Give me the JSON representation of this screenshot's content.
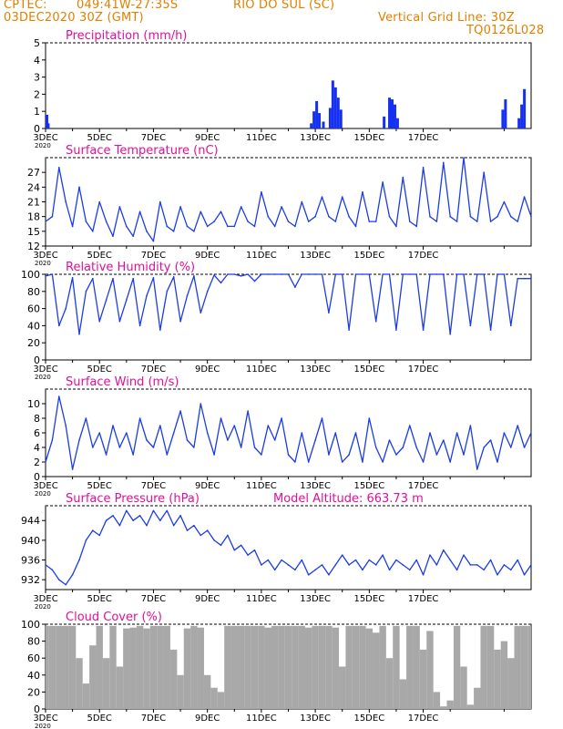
{
  "header": {
    "org": "CPTEC:",
    "coords": "049:41W-27:35S",
    "station": "RIO DO SUL (SC)",
    "datetime": "03DEC2020 30Z (GMT)",
    "grid_line": "Vertical Grid Line: 30Z",
    "code": "TQ0126L028"
  },
  "colors": {
    "header_text": "#e08000",
    "panel_title": "#e0109a",
    "series_line": "#1c3ce6",
    "precip_bar": "#1530f0",
    "cloud_bar": "#a8a8a8",
    "frame": "#000000"
  },
  "x_axis": {
    "tick_labels": [
      "3DEC",
      "5DEC",
      "7DEC",
      "9DEC",
      "11DEC",
      "13DEC",
      "15DEC",
      "17DEC"
    ],
    "sub_label": "2020"
  },
  "chart_data": [
    {
      "type": "bar",
      "title": "Precipitation (mm/h)",
      "ylim": [
        0,
        5
      ],
      "yticks": [
        0,
        1,
        2,
        3,
        4,
        5
      ],
      "x": [
        0.05,
        0.1,
        9.85,
        9.95,
        10.05,
        10.15,
        10.3,
        10.55,
        10.65,
        10.75,
        10.85,
        10.95,
        12.55,
        12.75,
        12.85,
        12.95,
        13.05,
        16.95,
        17.05,
        17.55,
        17.65,
        17.75
      ],
      "values": [
        0.8,
        0.3,
        0.3,
        1.0,
        1.6,
        0.9,
        0.4,
        1.2,
        2.8,
        2.4,
        1.8,
        1.1,
        0.7,
        1.8,
        1.7,
        1.4,
        0.6,
        1.1,
        1.7,
        0.6,
        1.4,
        2.3
      ]
    },
    {
      "type": "line",
      "title": "Surface Temperature (nC)",
      "ylim": [
        12,
        30
      ],
      "yticks": [
        12,
        15,
        18,
        21,
        24,
        27
      ],
      "x": [
        0,
        0.25,
        0.5,
        0.75,
        1.0,
        1.25,
        1.5,
        1.75,
        2.0,
        2.25,
        2.5,
        2.75,
        3.0,
        3.25,
        3.5,
        3.75,
        4.0,
        4.25,
        4.5,
        4.75,
        5.0,
        5.25,
        5.5,
        5.75,
        6.0,
        6.25,
        6.5,
        6.75,
        7.0,
        7.25,
        7.5,
        7.75,
        8.0,
        8.25,
        8.5,
        8.75,
        9.0,
        9.25,
        9.5,
        9.75,
        10.0,
        10.25,
        10.5,
        10.75,
        11.0,
        11.25,
        11.5,
        11.75,
        12.0,
        12.25,
        12.5,
        12.75,
        13.0,
        13.25,
        13.5,
        13.75,
        14.0,
        14.25,
        14.5,
        14.75,
        15.0,
        15.25,
        15.5,
        15.75,
        16.0,
        16.25,
        16.5,
        16.75,
        17.0,
        17.25,
        17.5,
        17.75,
        18.0
      ],
      "values": [
        17,
        18,
        28,
        21,
        16,
        24,
        17,
        15,
        21,
        17,
        14,
        20,
        16,
        14,
        19,
        15,
        13,
        21,
        16,
        15,
        20,
        16,
        15,
        19,
        16,
        17,
        19,
        16,
        16,
        20,
        17,
        16,
        23,
        18,
        16,
        20,
        17,
        16,
        21,
        17,
        18,
        22,
        18,
        17,
        22,
        18,
        16,
        23,
        17,
        17,
        25,
        18,
        16,
        26,
        17,
        16,
        28,
        18,
        17,
        29,
        18,
        17,
        30,
        18,
        17,
        27,
        17,
        18,
        21,
        18,
        17,
        22,
        18
      ]
    },
    {
      "type": "line",
      "title": "Relative Humidity (%)",
      "ylim": [
        0,
        100
      ],
      "yticks": [
        0,
        20,
        40,
        60,
        80,
        100
      ],
      "x": [
        0,
        0.25,
        0.5,
        0.75,
        1.0,
        1.25,
        1.5,
        1.75,
        2.0,
        2.25,
        2.5,
        2.75,
        3.0,
        3.25,
        3.5,
        3.75,
        4.0,
        4.25,
        4.5,
        4.75,
        5.0,
        5.25,
        5.5,
        5.75,
        6.0,
        6.25,
        6.5,
        6.75,
        7.0,
        7.25,
        7.5,
        7.75,
        8.0,
        8.25,
        8.5,
        8.75,
        9.0,
        9.25,
        9.5,
        9.75,
        10.0,
        10.25,
        10.5,
        10.75,
        11.0,
        11.25,
        11.5,
        11.75,
        12.0,
        12.25,
        12.5,
        12.75,
        13.0,
        13.25,
        13.5,
        13.75,
        14.0,
        14.25,
        14.5,
        14.75,
        15.0,
        15.25,
        15.5,
        15.75,
        16.0,
        16.25,
        16.5,
        16.75,
        17.0,
        17.25,
        17.5,
        17.75,
        18.0
      ],
      "values": [
        98,
        100,
        40,
        60,
        96,
        30,
        80,
        95,
        45,
        70,
        95,
        45,
        70,
        95,
        40,
        75,
        96,
        35,
        80,
        97,
        45,
        75,
        98,
        55,
        80,
        99,
        90,
        100,
        100,
        98,
        100,
        92,
        100,
        100,
        100,
        100,
        100,
        85,
        100,
        100,
        100,
        100,
        55,
        100,
        100,
        35,
        100,
        100,
        100,
        45,
        100,
        100,
        35,
        100,
        100,
        100,
        35,
        100,
        100,
        100,
        30,
        100,
        100,
        40,
        100,
        100,
        35,
        100,
        100,
        40,
        95,
        95,
        95
      ]
    },
    {
      "type": "line",
      "title": "Surface Wind (m/s)",
      "ylim": [
        0,
        12
      ],
      "yticks": [
        0,
        2,
        4,
        6,
        8,
        10
      ],
      "x": [
        0,
        0.25,
        0.5,
        0.75,
        1.0,
        1.25,
        1.5,
        1.75,
        2.0,
        2.25,
        2.5,
        2.75,
        3.0,
        3.25,
        3.5,
        3.75,
        4.0,
        4.25,
        4.5,
        4.75,
        5.0,
        5.25,
        5.5,
        5.75,
        6.0,
        6.25,
        6.5,
        6.75,
        7.0,
        7.25,
        7.5,
        7.75,
        8.0,
        8.25,
        8.5,
        8.75,
        9.0,
        9.25,
        9.5,
        9.75,
        10.0,
        10.25,
        10.5,
        10.75,
        11.0,
        11.25,
        11.5,
        11.75,
        12.0,
        12.25,
        12.5,
        12.75,
        13.0,
        13.25,
        13.5,
        13.75,
        14.0,
        14.25,
        14.5,
        14.75,
        15.0,
        15.25,
        15.5,
        15.75,
        16.0,
        16.25,
        16.5,
        16.75,
        17.0,
        17.25,
        17.5,
        17.75,
        18.0
      ],
      "values": [
        2,
        5,
        11,
        7,
        1,
        5,
        8,
        4,
        6,
        3,
        7,
        4,
        6,
        3,
        8,
        5,
        4,
        7,
        3,
        6,
        9,
        5,
        4,
        10,
        6,
        3,
        8,
        5,
        7,
        4,
        9,
        4,
        3,
        7,
        5,
        8,
        3,
        2,
        6,
        2,
        5,
        8,
        3,
        6,
        2,
        3,
        6,
        2,
        8,
        4,
        2,
        5,
        3,
        4,
        7,
        4,
        2,
        6,
        3,
        5,
        2,
        6,
        3,
        7,
        1,
        4,
        5,
        2,
        6,
        4,
        7,
        4,
        6
      ]
    },
    {
      "type": "line",
      "title": "Surface Pressure (hPa)",
      "annotation": "Model Altitude: 663.73 m",
      "ylim": [
        930,
        947
      ],
      "yticks": [
        932,
        936,
        940,
        944
      ],
      "x": [
        0,
        0.25,
        0.5,
        0.75,
        1.0,
        1.25,
        1.5,
        1.75,
        2.0,
        2.25,
        2.5,
        2.75,
        3.0,
        3.25,
        3.5,
        3.75,
        4.0,
        4.25,
        4.5,
        4.75,
        5.0,
        5.25,
        5.5,
        5.75,
        6.0,
        6.25,
        6.5,
        6.75,
        7.0,
        7.25,
        7.5,
        7.75,
        8.0,
        8.25,
        8.5,
        8.75,
        9.0,
        9.25,
        9.5,
        9.75,
        10.0,
        10.25,
        10.5,
        10.75,
        11.0,
        11.25,
        11.5,
        11.75,
        12.0,
        12.25,
        12.5,
        12.75,
        13.0,
        13.25,
        13.5,
        13.75,
        14.0,
        14.25,
        14.5,
        14.75,
        15.0,
        15.25,
        15.5,
        15.75,
        16.0,
        16.25,
        16.5,
        16.75,
        17.0,
        17.25,
        17.5,
        17.75,
        18.0
      ],
      "values": [
        935,
        934,
        932,
        931,
        933,
        936,
        940,
        942,
        941,
        944,
        945,
        943,
        946,
        944,
        945,
        943,
        946,
        944,
        946,
        943,
        945,
        942,
        943,
        941,
        942,
        940,
        939,
        941,
        938,
        939,
        937,
        938,
        935,
        936,
        934,
        936,
        935,
        934,
        936,
        933,
        934,
        935,
        933,
        935,
        937,
        935,
        936,
        934,
        936,
        935,
        937,
        934,
        936,
        935,
        934,
        936,
        933,
        937,
        935,
        938,
        936,
        934,
        937,
        935,
        935,
        934,
        936,
        933,
        935,
        934,
        936,
        933,
        935
      ]
    },
    {
      "type": "area",
      "title": "Cloud Cover (%)",
      "ylim": [
        0,
        100
      ],
      "yticks": [
        0,
        20,
        40,
        60,
        80,
        100
      ],
      "x": [
        0,
        0.25,
        0.5,
        0.75,
        1.0,
        1.25,
        1.5,
        1.75,
        2.0,
        2.25,
        2.5,
        2.75,
        3.0,
        3.25,
        3.5,
        3.75,
        4.0,
        4.25,
        4.5,
        4.75,
        5.0,
        5.25,
        5.5,
        5.75,
        6.0,
        6.25,
        6.5,
        6.75,
        7.0,
        7.25,
        7.5,
        7.75,
        8.0,
        8.25,
        8.5,
        8.75,
        9.0,
        9.25,
        9.5,
        9.75,
        10.0,
        10.25,
        10.5,
        10.75,
        11.0,
        11.25,
        11.5,
        11.75,
        12.0,
        12.25,
        12.5,
        12.75,
        13.0,
        13.25,
        13.5,
        13.75,
        14.0,
        14.25,
        14.5,
        14.75,
        15.0,
        15.25,
        15.5,
        15.75,
        16.0,
        16.25,
        16.5,
        16.75,
        17.0,
        17.25,
        17.5,
        17.75,
        18.0
      ],
      "values": [
        98,
        98,
        98,
        98,
        98,
        60,
        30,
        75,
        98,
        60,
        98,
        50,
        95,
        96,
        98,
        95,
        98,
        98,
        98,
        70,
        40,
        95,
        98,
        96,
        40,
        25,
        20,
        98,
        98,
        98,
        98,
        98,
        98,
        96,
        98,
        98,
        98,
        98,
        98,
        96,
        98,
        98,
        98,
        96,
        50,
        98,
        98,
        98,
        95,
        90,
        98,
        60,
        98,
        35,
        98,
        98,
        70,
        92,
        20,
        3,
        10,
        98,
        50,
        5,
        25,
        98,
        98,
        70,
        80,
        60,
        98,
        98,
        98
      ]
    }
  ]
}
